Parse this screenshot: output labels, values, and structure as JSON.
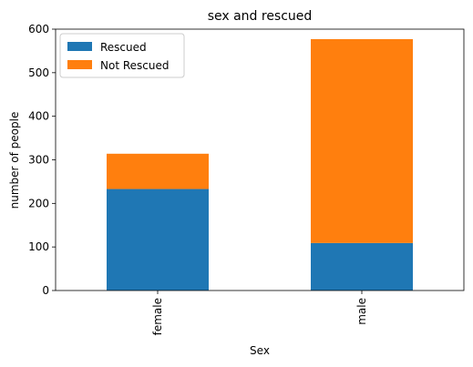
{
  "chart_data": {
    "type": "bar",
    "stacked": true,
    "title": "sex and rescued",
    "xlabel": "Sex",
    "ylabel": "number of people",
    "categories": [
      "female",
      "male"
    ],
    "series": [
      {
        "name": "Rescued",
        "values": [
          233,
          109
        ],
        "color": "#1f77b4"
      },
      {
        "name": "Not Rescued",
        "values": [
          81,
          468
        ],
        "color": "#ff7f0e"
      }
    ],
    "ylim": [
      0,
      600
    ],
    "yticks": [
      0,
      100,
      200,
      300,
      400,
      500,
      600
    ],
    "grid": false,
    "legend_position": "top-left"
  }
}
